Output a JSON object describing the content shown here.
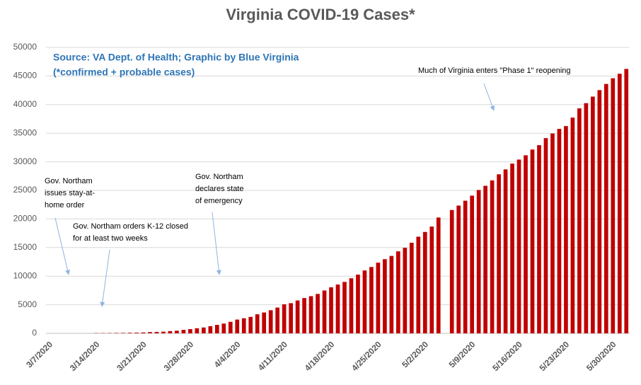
{
  "chart_data": {
    "type": "bar",
    "title": "Virginia COVID-19 Cases*",
    "source_lines": [
      "Source: VA Dept. of Health; Graphic by Blue Virginia",
      "(*confirmed + probable cases)"
    ],
    "annotations": [
      {
        "lines": [
          "Much of Virginia enters \"Phase 1\" reopening"
        ]
      },
      {
        "lines": [
          "Gov. Northam",
          "issues stay-at-",
          "home order"
        ]
      },
      {
        "lines": [
          "Gov. Northam orders K-12 closed",
          "for at least two weeks"
        ]
      },
      {
        "lines": [
          "Gov. Northam",
          "declares state",
          "of emergency"
        ]
      }
    ],
    "categories": [
      "3/7/2020",
      null,
      null,
      null,
      null,
      null,
      null,
      "3/14/2020",
      null,
      null,
      null,
      null,
      null,
      null,
      "3/21/2020",
      null,
      null,
      null,
      null,
      null,
      null,
      "3/28/2020",
      null,
      null,
      null,
      null,
      null,
      null,
      "4/4/2020",
      null,
      null,
      null,
      null,
      null,
      null,
      "4/11/2020",
      null,
      null,
      null,
      null,
      null,
      null,
      "4/18/2020",
      null,
      null,
      null,
      null,
      null,
      null,
      "4/25/2020",
      null,
      null,
      null,
      null,
      null,
      null,
      "5/2/2020",
      null,
      null,
      null,
      null,
      null,
      null,
      "5/9/2020",
      null,
      null,
      null,
      null,
      null,
      null,
      "5/16/2020",
      null,
      null,
      null,
      null,
      null,
      null,
      "5/23/2020",
      null,
      null,
      null,
      null,
      null,
      null,
      "5/30/2020",
      null,
      null
    ],
    "values": [
      0,
      0,
      0,
      0,
      0,
      0,
      0,
      41,
      45,
      51,
      67,
      77,
      99,
      114,
      152,
      219,
      254,
      290,
      391,
      460,
      604,
      739,
      890,
      1020,
      1250,
      1484,
      1706,
      2012,
      2407,
      2637,
      2878,
      3333,
      3645,
      4042,
      4509,
      5077,
      5274,
      5747,
      6171,
      6500,
      6889,
      7491,
      8053,
      8537,
      8990,
      9630,
      10266,
      10998,
      11594,
      12366,
      12970,
      13535,
      14339,
      14961,
      15846,
      16901,
      17731,
      18671,
      20256,
      null,
      21570,
      22342,
      23196,
      24081,
      25070,
      25800,
      26746,
      27813,
      28672,
      29683,
      30388,
      31140,
      32145,
      32908,
      34137,
      34950,
      35749,
      36244,
      37727,
      39342,
      40249,
      41401,
      42533,
      43611,
      44607,
      45398,
      46239
    ],
    "color": "#c00000",
    "ylim": [
      0,
      50000
    ],
    "yticks": [
      0,
      5000,
      10000,
      15000,
      20000,
      25000,
      30000,
      35000,
      40000,
      45000,
      50000
    ],
    "grid": true
  }
}
